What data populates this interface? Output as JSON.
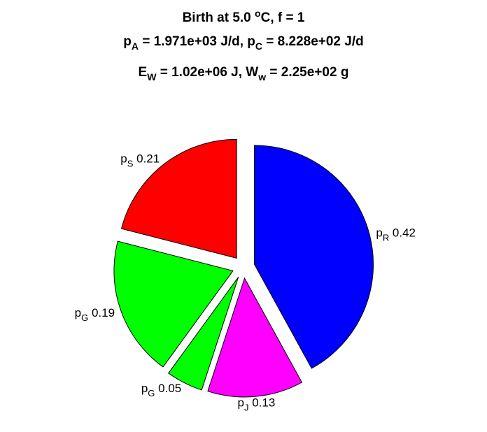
{
  "chart_data": {
    "type": "pie",
    "title_lines": [
      [
        {
          "t": "Birth at 5.0 "
        },
        {
          "t": "o",
          "sup": true
        },
        {
          "t": "C, f = 1"
        }
      ],
      [
        {
          "t": "p"
        },
        {
          "t": "A",
          "sub": true
        },
        {
          "t": " = 1.971e+03 J/d, p"
        },
        {
          "t": "C",
          "sub": true
        },
        {
          "t": " = 8.228e+02 J/d"
        }
      ],
      [
        {
          "t": "E"
        },
        {
          "t": "W",
          "sub": true
        },
        {
          "t": " = 1.02e+06 J, W"
        },
        {
          "t": "w",
          "sub": true
        },
        {
          "t": " = 2.25e+02 g"
        }
      ]
    ],
    "slices": [
      {
        "base": "p",
        "sub": "R",
        "value": 0.42,
        "label_value": "0.42",
        "color": "#0000ff"
      },
      {
        "base": "p",
        "sub": "J",
        "value": 0.13,
        "label_value": "0.13",
        "color": "#ff00ff"
      },
      {
        "base": "p",
        "sub": "G",
        "value": 0.05,
        "label_value": "0.05",
        "color": "#00ff00"
      },
      {
        "base": "p",
        "sub": "G",
        "value": 0.19,
        "label_value": "0.19",
        "color": "#00ff00"
      },
      {
        "base": "p",
        "sub": "S",
        "value": 0.21,
        "label_value": "0.21",
        "color": "#ff0000"
      }
    ],
    "start_direction": "top",
    "direction": "clockwise",
    "exploded": true
  }
}
